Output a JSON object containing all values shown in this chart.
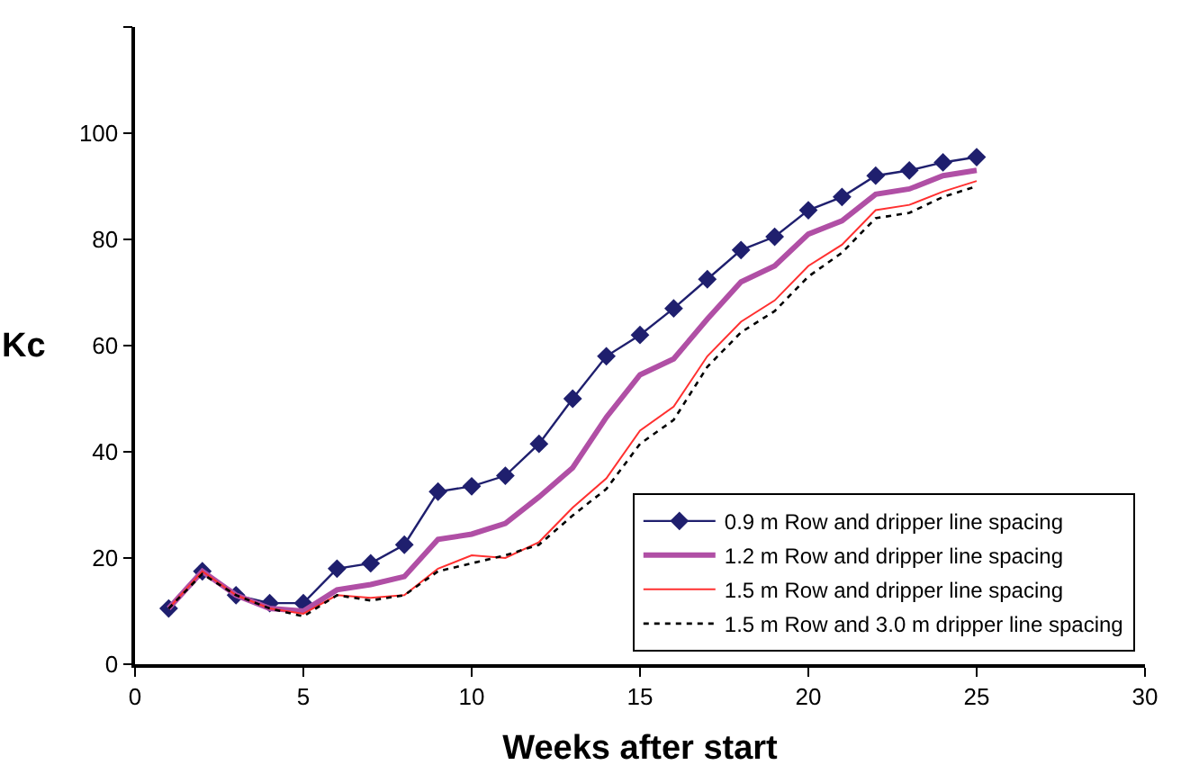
{
  "chart_data": {
    "type": "line",
    "xlabel": "Weeks after start",
    "ylabel": "Kc",
    "x": [
      1,
      2,
      3,
      4,
      5,
      6,
      7,
      8,
      9,
      10,
      11,
      12,
      13,
      14,
      15,
      16,
      17,
      18,
      19,
      20,
      21,
      22,
      23,
      24,
      25
    ],
    "series": [
      {
        "name": "0.9 m Row and dripper line spacing",
        "color": "#1f1f6e",
        "marker": "diamond",
        "line_style": "solid",
        "values": [
          10.5,
          17.5,
          13,
          11.5,
          11.5,
          18,
          19,
          22.5,
          32.5,
          33.5,
          35.5,
          41.5,
          50,
          58,
          62,
          67,
          72.5,
          78,
          80.5,
          85.5,
          88,
          92,
          93,
          94.5,
          95.5
        ]
      },
      {
        "name": "1.2 m Row and dripper line spacing",
        "color": "#b04fa5",
        "marker": "none",
        "line_style": "solid",
        "values": [
          10.5,
          17.5,
          13,
          10.5,
          10,
          14,
          15,
          16.5,
          23.5,
          24.5,
          26.5,
          31.5,
          37,
          46.5,
          54.5,
          57.5,
          65,
          72,
          75,
          81,
          83.5,
          88.5,
          89.5,
          92,
          93
        ]
      },
      {
        "name": "1.5 m Row and dripper line spacing",
        "color": "#ff3030",
        "marker": "none",
        "line_style": "solid",
        "values": [
          10.5,
          17.5,
          13,
          10.5,
          9.5,
          13,
          12.5,
          13,
          18,
          20.5,
          20,
          23,
          29.5,
          35,
          44,
          48.5,
          58,
          64.5,
          68.5,
          75,
          79,
          85.5,
          86.5,
          89,
          91
        ]
      },
      {
        "name": "1.5 m Row and 3.0 m dripper line spacing",
        "color": "#000000",
        "marker": "none",
        "line_style": "dotted",
        "values": [
          10.5,
          17,
          13,
          10.5,
          9,
          13,
          12,
          13,
          17.5,
          19,
          20.5,
          22.5,
          28,
          33,
          41.5,
          46,
          56,
          62.5,
          66.5,
          73,
          77.5,
          84,
          85,
          88,
          90
        ]
      }
    ],
    "xlim": [
      0,
      30
    ],
    "xticks": [
      0,
      5,
      10,
      15,
      20,
      25,
      30
    ],
    "ylim": [
      0,
      120
    ],
    "yticks": [
      0,
      20,
      40,
      60,
      80,
      100,
      {
        "value": 120,
        "label": null
      }
    ],
    "legend": "bottom right"
  }
}
